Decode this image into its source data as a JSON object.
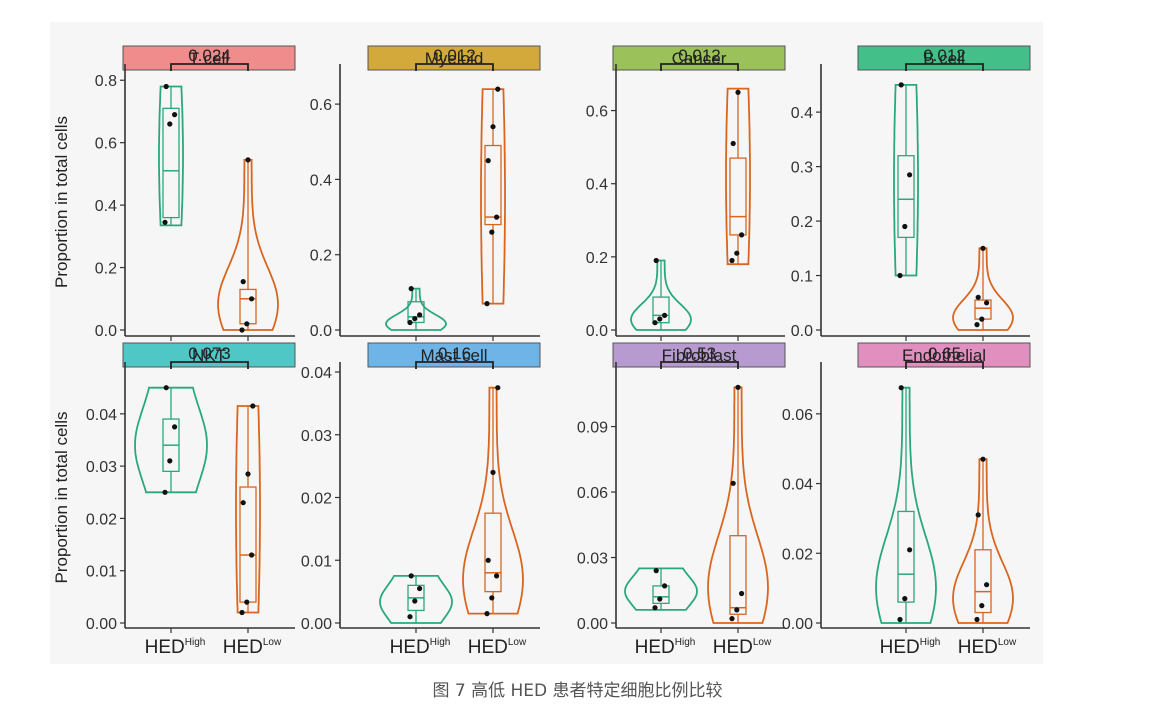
{
  "figure": {
    "ylabel": "Proportion in total cells",
    "caption": "图 7 高低 HED 患者特定细胞比例比较"
  },
  "chart_data": [
    {
      "type": "violin",
      "title": "T cell",
      "strip_color": "#f08c8c",
      "ylim": [
        0,
        0.82
      ],
      "yticks": [
        0.0,
        0.2,
        0.4,
        0.6,
        0.8
      ],
      "tick_labels": [
        "0.0",
        "0.2",
        "0.4",
        "0.6",
        "0.8"
      ],
      "pvalue": "0.024",
      "categories": [
        "HEDHigh",
        "HEDLow"
      ],
      "series": [
        {
          "color": "#2aa87c",
          "box": {
            "q1": 0.36,
            "median": 0.51,
            "q3": 0.71
          },
          "range": [
            0.335,
            0.78
          ],
          "points": [
            0.345,
            0.66,
            0.69,
            0.78
          ],
          "shape": "flat"
        },
        {
          "color": "#d9661e",
          "box": {
            "q1": 0.02,
            "median": 0.1,
            "q3": 0.13
          },
          "range": [
            0.0,
            0.545
          ],
          "points": [
            0.0,
            0.02,
            0.1,
            0.155,
            0.545
          ],
          "shape": "bottom"
        }
      ]
    },
    {
      "type": "violin",
      "title": "Myeloid",
      "strip_color": "#d4a93c",
      "ylim": [
        0,
        0.68
      ],
      "yticks": [
        0.0,
        0.2,
        0.4,
        0.6
      ],
      "tick_labels": [
        "0.0",
        "0.2",
        "0.4",
        "0.6"
      ],
      "pvalue": "0.012",
      "categories": [
        "HEDHigh",
        "HEDLow"
      ],
      "series": [
        {
          "color": "#2aa87c",
          "box": {
            "q1": 0.02,
            "median": 0.035,
            "q3": 0.075
          },
          "range": [
            0.0,
            0.11
          ],
          "points": [
            0.02,
            0.03,
            0.04,
            0.11
          ],
          "shape": "bottom"
        },
        {
          "color": "#d9661e",
          "box": {
            "q1": 0.28,
            "median": 0.3,
            "q3": 0.49
          },
          "range": [
            0.07,
            0.64
          ],
          "points": [
            0.07,
            0.26,
            0.3,
            0.45,
            0.54,
            0.64
          ],
          "shape": "flat"
        }
      ]
    },
    {
      "type": "violin",
      "title": "Cancer",
      "strip_color": "#9bc15a",
      "ylim": [
        0,
        0.7
      ],
      "yticks": [
        0.0,
        0.2,
        0.4,
        0.6
      ],
      "tick_labels": [
        "0.0",
        "0.2",
        "0.4",
        "0.6"
      ],
      "pvalue": "0.012",
      "categories": [
        "HEDHigh",
        "HEDLow"
      ],
      "series": [
        {
          "color": "#2aa87c",
          "box": {
            "q1": 0.02,
            "median": 0.04,
            "q3": 0.09
          },
          "range": [
            0.0,
            0.19
          ],
          "points": [
            0.02,
            0.03,
            0.04,
            0.19
          ],
          "shape": "bottom"
        },
        {
          "color": "#d9661e",
          "box": {
            "q1": 0.26,
            "median": 0.31,
            "q3": 0.47
          },
          "range": [
            0.18,
            0.66
          ],
          "points": [
            0.19,
            0.21,
            0.26,
            0.51,
            0.65
          ],
          "shape": "flat"
        }
      ]
    },
    {
      "type": "violin",
      "title": "B cell",
      "strip_color": "#43c08a",
      "ylim": [
        0,
        0.47
      ],
      "yticks": [
        0.0,
        0.1,
        0.2,
        0.3,
        0.4
      ],
      "tick_labels": [
        "0.0",
        "0.1",
        "0.2",
        "0.3",
        "0.4"
      ],
      "pvalue": "0.012",
      "categories": [
        "HEDHigh",
        "HEDLow"
      ],
      "series": [
        {
          "color": "#2aa87c",
          "box": {
            "q1": 0.17,
            "median": 0.24,
            "q3": 0.32
          },
          "range": [
            0.1,
            0.45
          ],
          "points": [
            0.1,
            0.19,
            0.285,
            0.45
          ],
          "shape": "flat"
        },
        {
          "color": "#d9661e",
          "box": {
            "q1": 0.02,
            "median": 0.04,
            "q3": 0.055
          },
          "range": [
            0.0,
            0.15
          ],
          "points": [
            0.01,
            0.02,
            0.05,
            0.06,
            0.15
          ],
          "shape": "bottom"
        }
      ]
    },
    {
      "type": "violin",
      "title": "NKT",
      "strip_color": "#4fc7c7",
      "ylim": [
        0,
        0.048
      ],
      "yticks": [
        0.0,
        0.01,
        0.02,
        0.03,
        0.04
      ],
      "tick_labels": [
        "0.00",
        "0.01",
        "0.02",
        "0.03",
        "0.04"
      ],
      "pvalue": "0.073",
      "categories": [
        "HEDHigh",
        "HEDLow"
      ],
      "series": [
        {
          "color": "#2aa87c",
          "box": {
            "q1": 0.029,
            "median": 0.034,
            "q3": 0.039
          },
          "range": [
            0.025,
            0.045
          ],
          "points": [
            0.025,
            0.031,
            0.0375,
            0.045
          ],
          "shape": "wide"
        },
        {
          "color": "#d9661e",
          "box": {
            "q1": 0.004,
            "median": 0.013,
            "q3": 0.026
          },
          "range": [
            0.002,
            0.0415
          ],
          "points": [
            0.002,
            0.004,
            0.013,
            0.023,
            0.0285,
            0.0415
          ],
          "shape": "flat"
        }
      ]
    },
    {
      "type": "violin",
      "title": "Mast cell",
      "strip_color": "#6fb4e6",
      "ylim": [
        0,
        0.04
      ],
      "yticks": [
        0.0,
        0.01,
        0.02,
        0.03,
        0.04
      ],
      "tick_labels": [
        "0.00",
        "0.01",
        "0.02",
        "0.03",
        "0.04"
      ],
      "pvalue": "0.16",
      "categories": [
        "HEDHigh",
        "HEDLow"
      ],
      "series": [
        {
          "color": "#2aa87c",
          "box": {
            "q1": 0.002,
            "median": 0.004,
            "q3": 0.006
          },
          "range": [
            0.0,
            0.0075
          ],
          "points": [
            0.001,
            0.0035,
            0.0055,
            0.0075
          ],
          "shape": "wide"
        },
        {
          "color": "#d9661e",
          "box": {
            "q1": 0.005,
            "median": 0.008,
            "q3": 0.0175
          },
          "range": [
            0.0015,
            0.0375
          ],
          "points": [
            0.0015,
            0.004,
            0.0075,
            0.01,
            0.024,
            0.0375
          ],
          "shape": "bottom"
        }
      ]
    },
    {
      "type": "violin",
      "title": "Fibroblast",
      "strip_color": "#b79ad0",
      "ylim": [
        0,
        0.115
      ],
      "yticks": [
        0.0,
        0.03,
        0.06,
        0.09
      ],
      "tick_labels": [
        "0.00",
        "0.03",
        "0.06",
        "0.09"
      ],
      "pvalue": "0.53",
      "categories": [
        "HEDHigh",
        "HEDLow"
      ],
      "series": [
        {
          "color": "#2aa87c",
          "box": {
            "q1": 0.009,
            "median": 0.012,
            "q3": 0.017
          },
          "range": [
            0.006,
            0.025
          ],
          "points": [
            0.007,
            0.011,
            0.017,
            0.024
          ],
          "shape": "wide"
        },
        {
          "color": "#d9661e",
          "box": {
            "q1": 0.004,
            "median": 0.007,
            "q3": 0.04
          },
          "range": [
            0.0,
            0.108
          ],
          "points": [
            0.002,
            0.006,
            0.0135,
            0.064,
            0.108
          ],
          "shape": "bottom"
        }
      ]
    },
    {
      "type": "violin",
      "title": "Endothelial",
      "strip_color": "#e08fbf",
      "ylim": [
        0,
        0.072
      ],
      "yticks": [
        0.0,
        0.02,
        0.04,
        0.06
      ],
      "tick_labels": [
        "0.00",
        "0.02",
        "0.04",
        "0.06"
      ],
      "pvalue": "0.65",
      "categories": [
        "HEDHigh",
        "HEDLow"
      ],
      "series": [
        {
          "color": "#2aa87c",
          "box": {
            "q1": 0.006,
            "median": 0.014,
            "q3": 0.032
          },
          "range": [
            0.0,
            0.0675
          ],
          "points": [
            0.001,
            0.007,
            0.021,
            0.0675
          ],
          "shape": "bottom"
        },
        {
          "color": "#d9661e",
          "box": {
            "q1": 0.003,
            "median": 0.009,
            "q3": 0.021
          },
          "range": [
            0.0,
            0.047
          ],
          "points": [
            0.001,
            0.005,
            0.011,
            0.031,
            0.047
          ],
          "shape": "bottom"
        }
      ]
    }
  ]
}
